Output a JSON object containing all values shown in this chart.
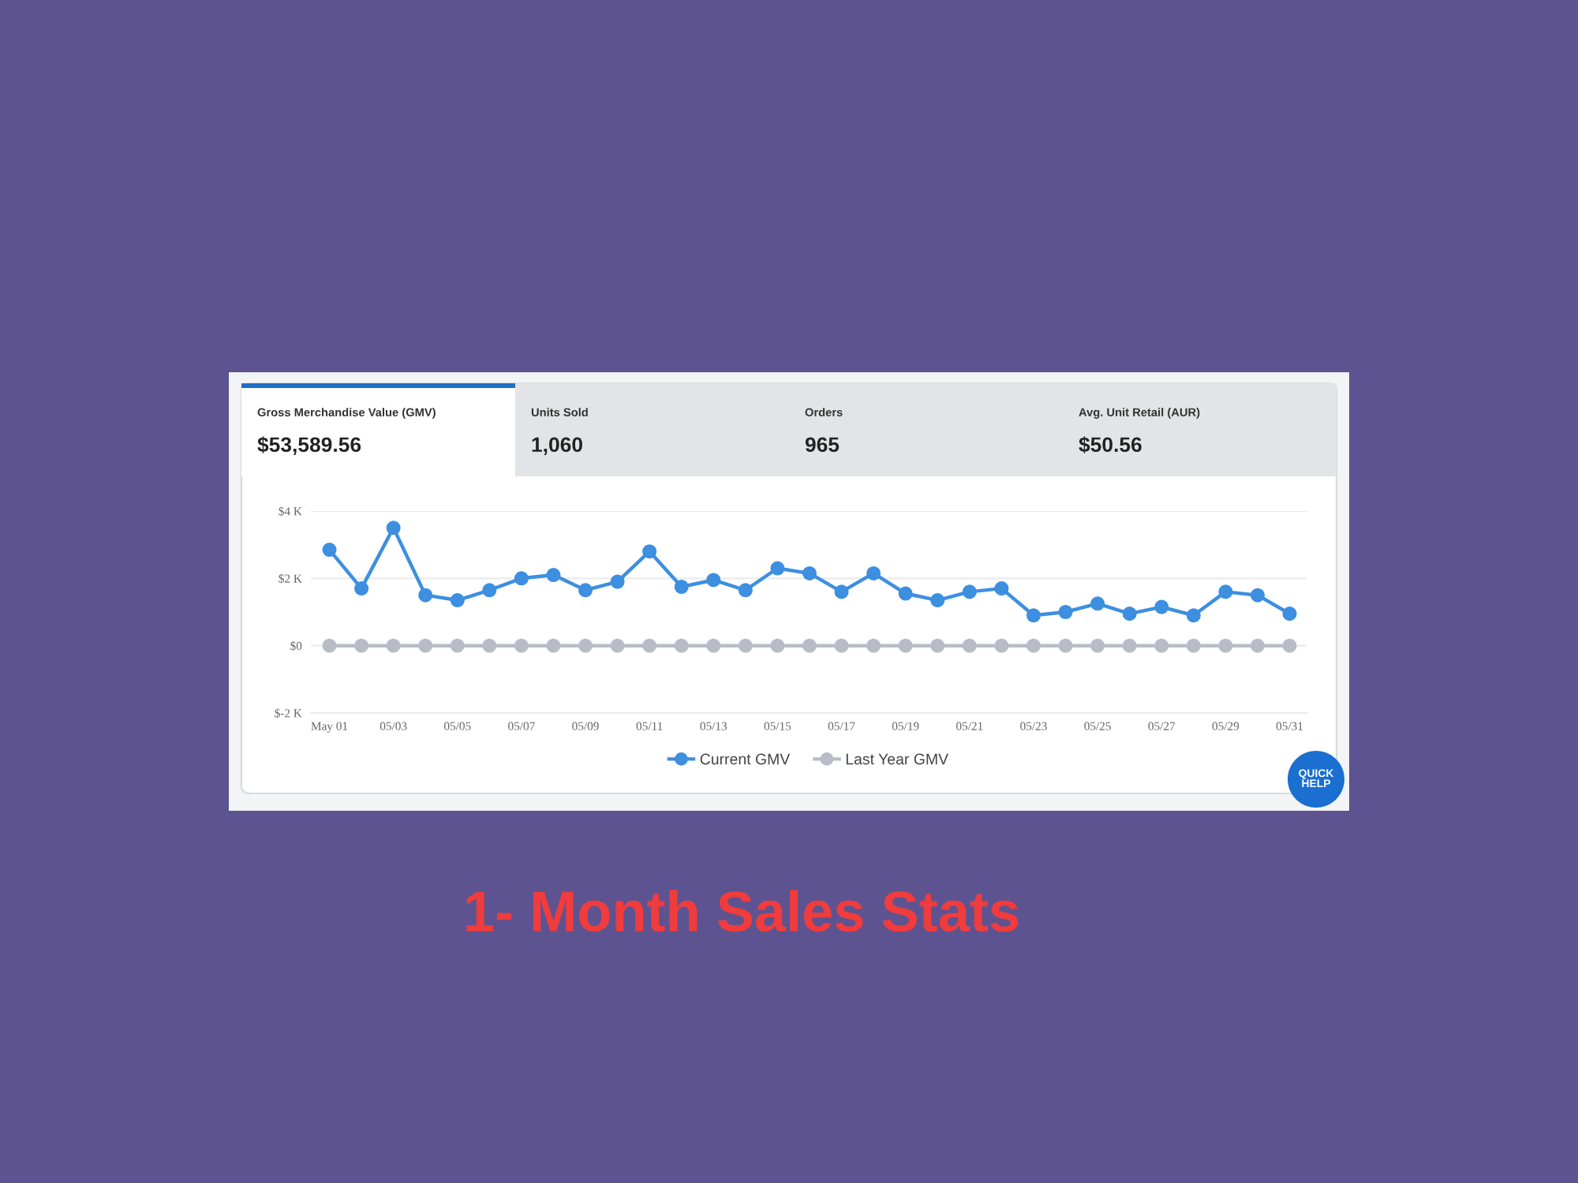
{
  "chart_data": [
    {
      "type": "other",
      "title": "Gross Merchandise Value (GMV)",
      "annotations": [
        "$53,589.56"
      ]
    },
    {
      "type": "other",
      "title": "Units Sold",
      "annotations": [
        "1,060"
      ]
    },
    {
      "type": "other",
      "title": "Orders",
      "annotations": [
        "965"
      ]
    },
    {
      "type": "other",
      "title": "Avg. Unit Retail (AUR)",
      "annotations": [
        "$50.56"
      ]
    },
    {
      "type": "line",
      "title": "1- Month Sales Stats",
      "categories": [
        "May 01",
        null,
        "05/03",
        null,
        "05/05",
        null,
        "05/07",
        null,
        "05/09",
        null,
        "05/11",
        null,
        "05/13",
        null,
        "05/15",
        null,
        "05/17",
        null,
        "05/19",
        null,
        "05/21",
        null,
        "05/23",
        null,
        "05/25",
        null,
        "05/27",
        null,
        "05/29",
        null,
        "05/31"
      ],
      "series": [
        {
          "name": "Current GMV",
          "color": "#3d8fe0",
          "values": [
            2.85,
            1.7,
            3.5,
            1.5,
            1.35,
            1.65,
            2.0,
            2.1,
            1.65,
            1.9,
            2.8,
            1.75,
            1.95,
            1.65,
            2.3,
            2.15,
            1.6,
            2.15,
            1.55,
            1.35,
            1.6,
            1.7,
            0.9,
            1.0,
            1.25,
            0.95,
            1.15,
            0.9,
            1.6,
            1.5,
            0.95
          ]
        },
        {
          "name": "Last Year GMV",
          "color": "#b8bcc6",
          "values": [
            0,
            0,
            0,
            0,
            0,
            0,
            0,
            0,
            0,
            0,
            0,
            0,
            0,
            0,
            0,
            0,
            0,
            0,
            0,
            0,
            0,
            0,
            0,
            0,
            0,
            0,
            0,
            0,
            0,
            0,
            0
          ]
        }
      ],
      "ylim": [
        -2,
        4
      ],
      "yticks": [
        {
          "value": -2,
          "label": "$-2 K"
        },
        {
          "value": 0,
          "label": "$0"
        },
        {
          "value": 2,
          "label": "$2 K"
        },
        {
          "value": 4,
          "label": "$4 K"
        }
      ],
      "grid": "y",
      "legend": "bottom",
      "marker": "circle",
      "line_style": "solid",
      "annotations": [
        "QUICK HELP"
      ]
    }
  ]
}
